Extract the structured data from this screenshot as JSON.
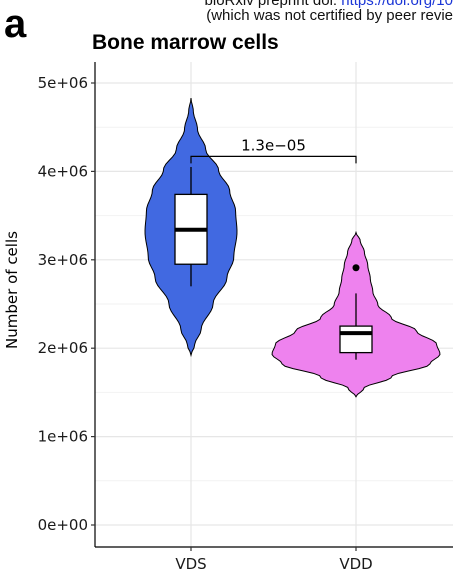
{
  "header": {
    "line1_prefix": "bioRxiv preprint doi: ",
    "line1_link": "https://doi.org/10",
    "line2": "(which was not certified by peer revie"
  },
  "panel_letter": "a",
  "chart_data": {
    "type": "violin",
    "title": "Bone marrow cells",
    "xlabel": "",
    "ylabel": "Number of cells",
    "categories": [
      "VDS",
      "VDD"
    ],
    "ylim": [
      -100000,
      5200000
    ],
    "yticks": [
      0,
      1000000,
      2000000,
      3000000,
      4000000,
      5000000
    ],
    "ytick_labels": [
      "0e+00",
      "1e+06",
      "2e+06",
      "3e+06",
      "4e+06",
      "5e+06"
    ],
    "grid": true,
    "legend": "none",
    "groups": [
      {
        "name": "VDS",
        "color": "#4169e1",
        "violin_range": [
          1920000,
          4830000
        ],
        "box": {
          "q1": 2950000,
          "median": 3340000,
          "q3": 3740000,
          "whisker_low": 2700000,
          "whisker_high": 4050000
        },
        "outliers": []
      },
      {
        "name": "VDD",
        "color": "#ee82ee",
        "violin_range": [
          1450000,
          3310000
        ],
        "box": {
          "q1": 1950000,
          "median": 2170000,
          "q3": 2250000,
          "whisker_low": 1870000,
          "whisker_high": 2620000
        },
        "outliers": [
          2910000
        ]
      }
    ],
    "annotations": [
      {
        "text": "1.3e−05",
        "from": "VDS",
        "to": "VDD",
        "y": 4170000
      }
    ]
  }
}
